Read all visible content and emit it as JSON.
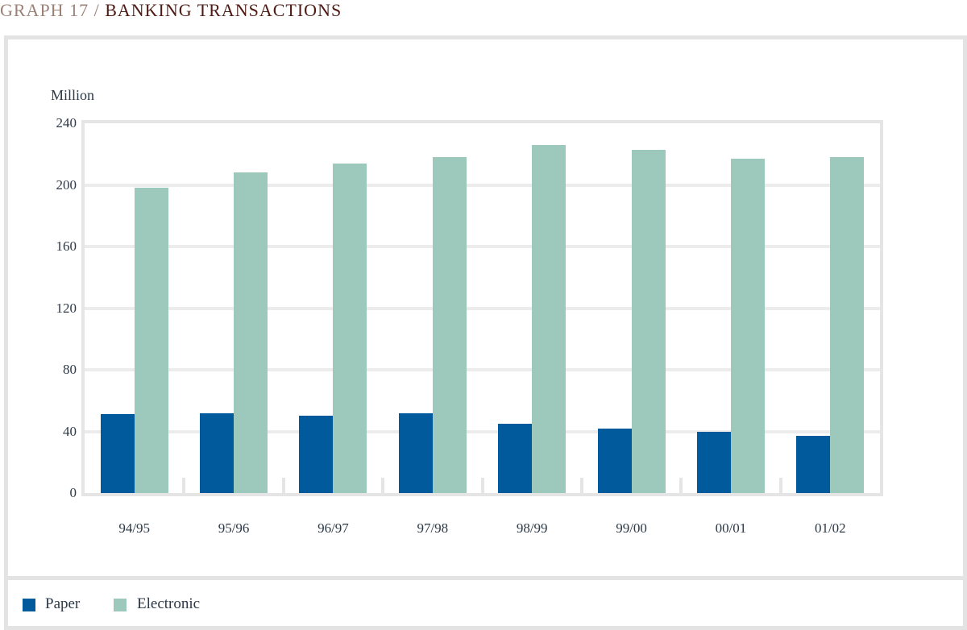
{
  "title": {
    "prefix": "GRAPH 17 /",
    "main": "BANKING TRANSACTIONS",
    "prefix_color": "#9c8177",
    "main_color": "#4e1a13"
  },
  "axis": {
    "unit_label": "Million",
    "text_color": "#2c3947",
    "grid_color": "#ececec",
    "frame_color": "#e5e5e5"
  },
  "chart_data": {
    "type": "bar",
    "title": "GRAPH 17 / BANKING TRANSACTIONS",
    "xlabel": "",
    "ylabel": "Million",
    "categories": [
      "94/95",
      "95/96",
      "96/97",
      "97/98",
      "98/99",
      "99/00",
      "00/01",
      "01/02"
    ],
    "series": [
      {
        "name": "Paper",
        "color": "#005a9c",
        "values": [
          51,
          52,
          50,
          52,
          45,
          42,
          40,
          37
        ]
      },
      {
        "name": "Electronic",
        "color": "#9cc9bc",
        "values": [
          198,
          208,
          214,
          218,
          226,
          223,
          217,
          218
        ]
      }
    ],
    "ylim": [
      0,
      240
    ],
    "yticks": [
      0,
      40,
      80,
      120,
      160,
      200,
      240
    ],
    "grid": true,
    "legend_position": "bottom"
  },
  "legend": {
    "items": [
      {
        "label": "Paper",
        "color": "#005a9c"
      },
      {
        "label": "Electronic",
        "color": "#9cc9bc"
      }
    ]
  }
}
